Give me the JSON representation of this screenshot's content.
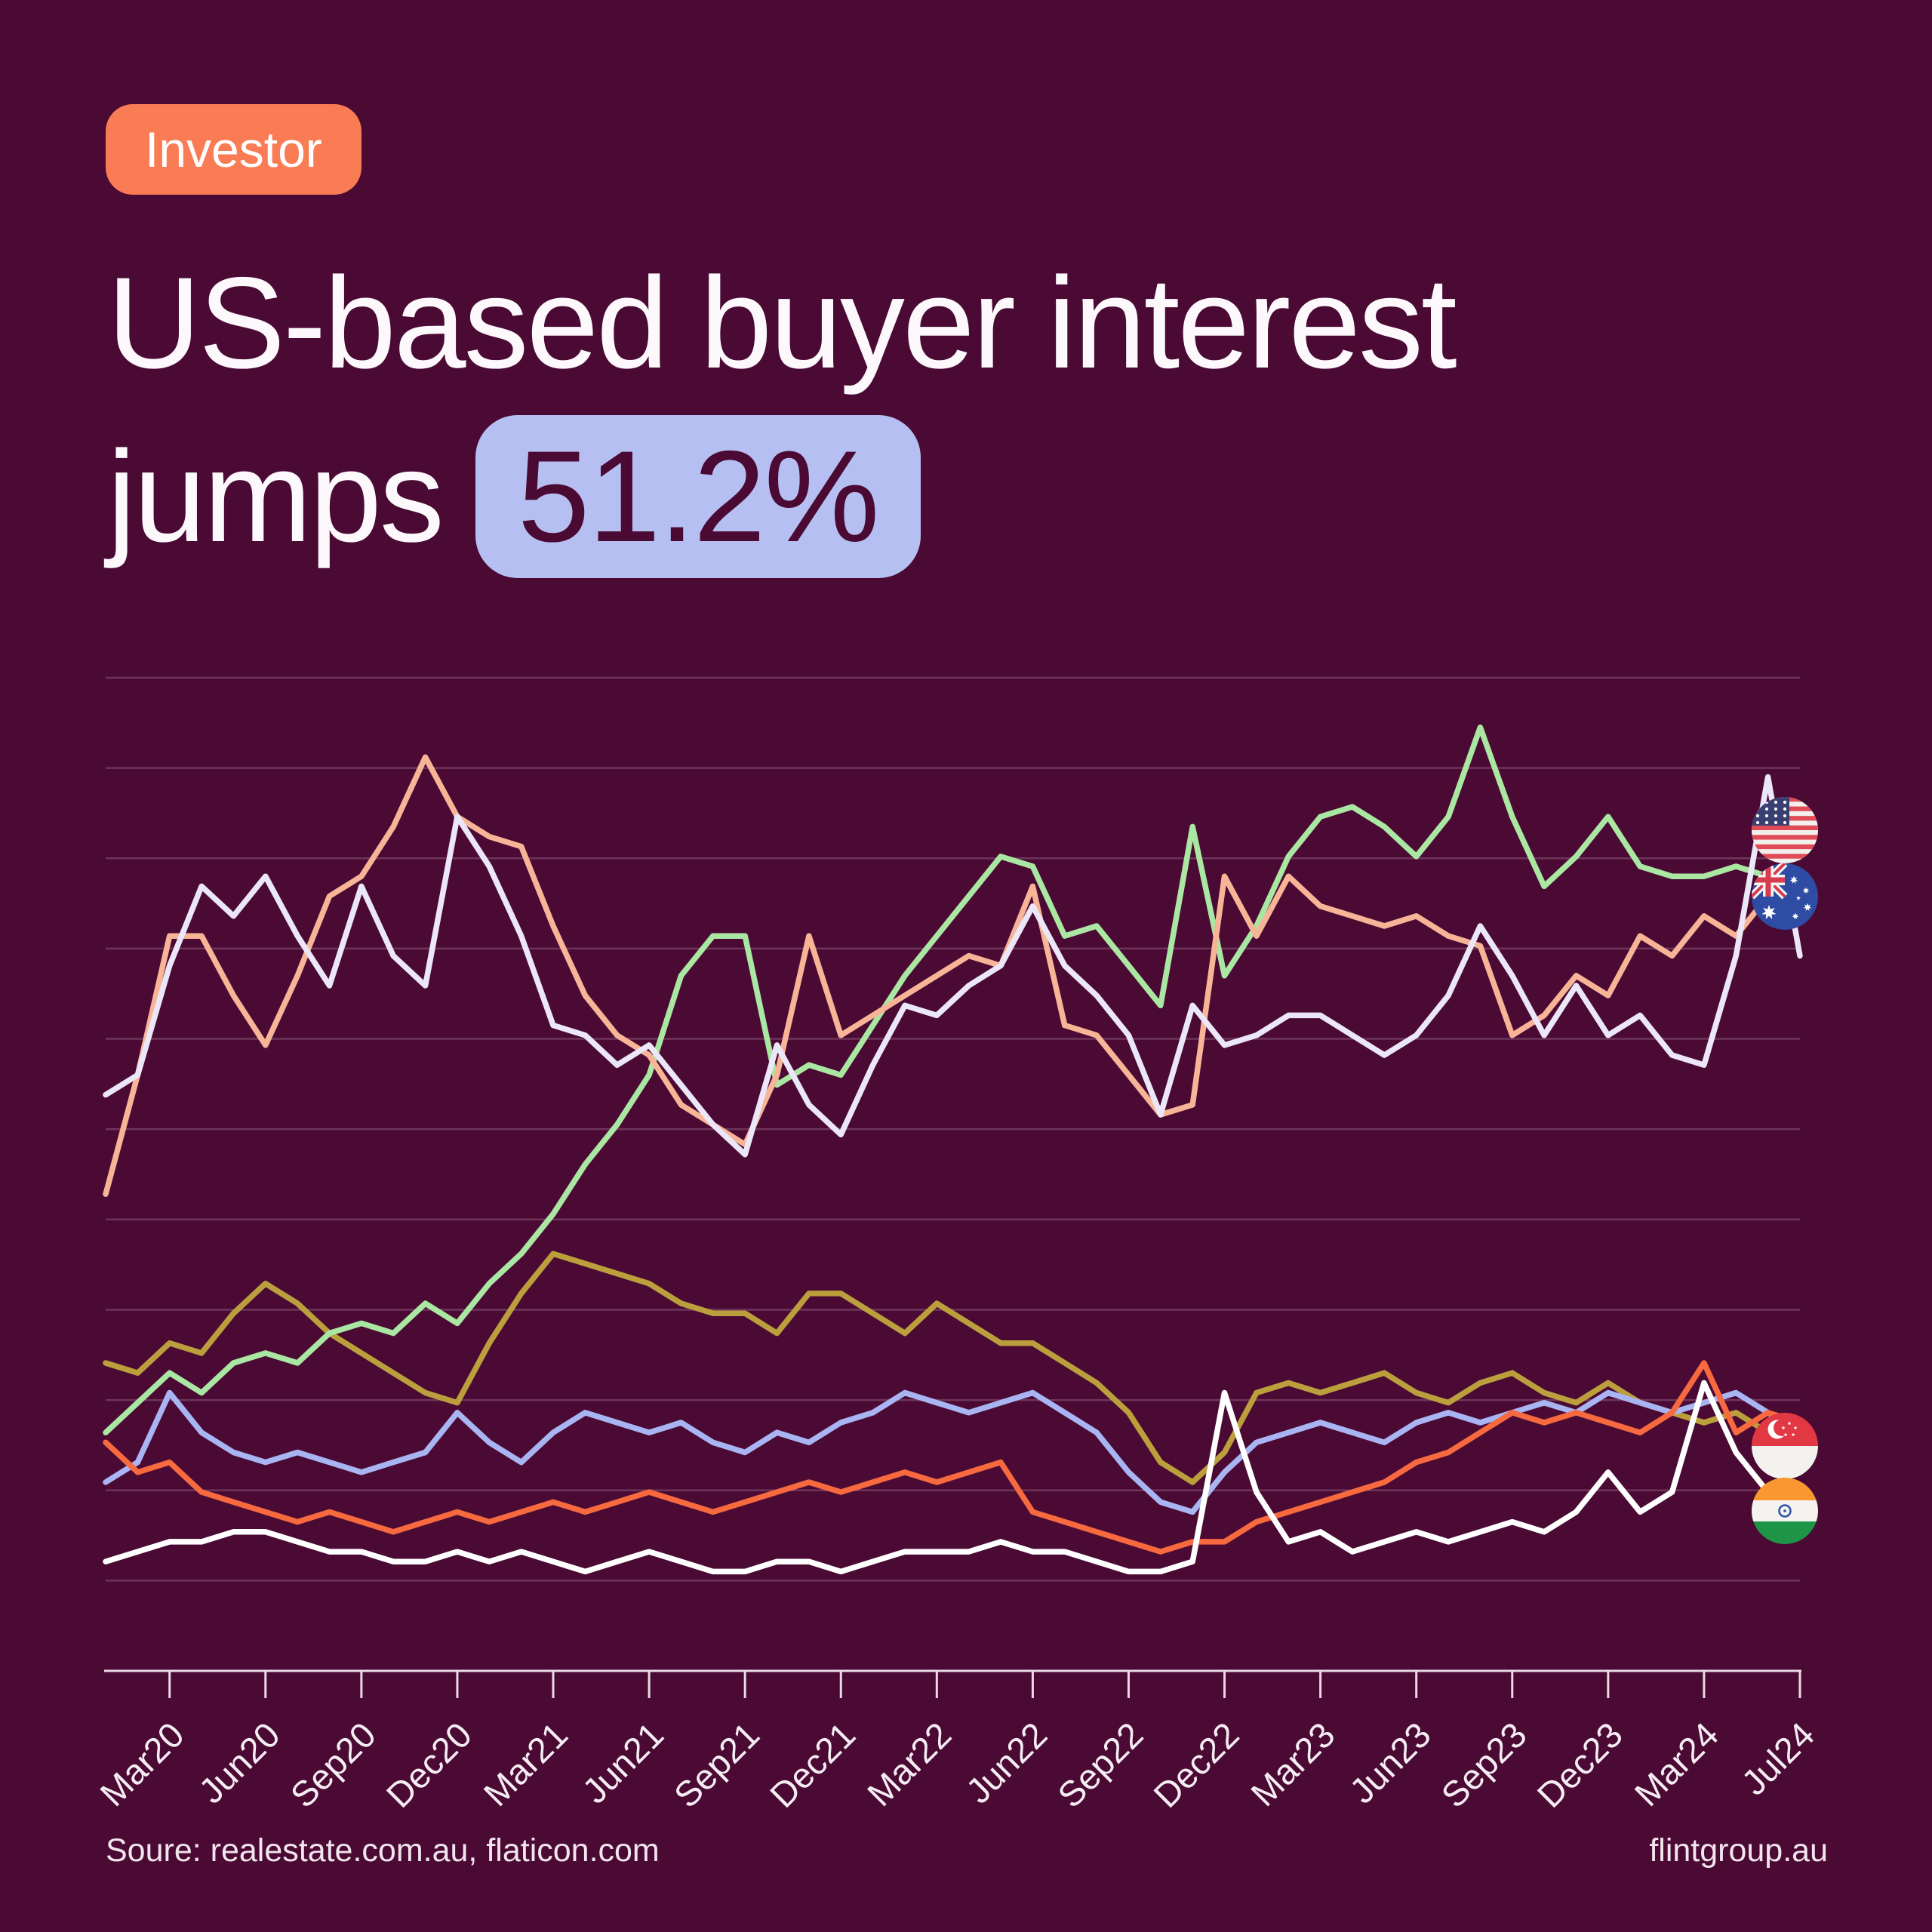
{
  "page": {
    "background": "#4A0A33",
    "accent_orange": "#F97C55",
    "accent_lavender": "#B6BFF1"
  },
  "badge": {
    "label": "Investor"
  },
  "title": {
    "line1": "US-based buyer interest",
    "line2_prefix": "jumps",
    "highlight": "51.2%"
  },
  "footer": {
    "source": "Soure: realestate.com.au, flaticon.com",
    "site": "flintgroup.au"
  },
  "chart_data": {
    "type": "line",
    "title": "",
    "xlabel": "",
    "ylabel": "",
    "ylim": [
      0,
      105
    ],
    "grid": "horizontal",
    "legend_position": "right-flags",
    "n_points": 54,
    "x_tick_labels": [
      "Mar20",
      "Jun20",
      "Sep20",
      "Dec20",
      "Mar21",
      "Jun21",
      "Sep21",
      "Dec21",
      "Mar22",
      "Jun22",
      "Sep22",
      "Dec22",
      "Mar23",
      "Jun23",
      "Sep23",
      "Dec23",
      "Mar24",
      "Jul24"
    ],
    "x_tick_indices": [
      2,
      5,
      8,
      11,
      14,
      17,
      20,
      23,
      26,
      29,
      32,
      35,
      38,
      41,
      44,
      47,
      50,
      53
    ],
    "series": [
      {
        "name": "series-khaki",
        "color": "#BC9F3D",
        "flag": null,
        "values": [
          31,
          30,
          33,
          32,
          36,
          39,
          37,
          34,
          32,
          30,
          28,
          27,
          33,
          38,
          42,
          41,
          40,
          39,
          37,
          36,
          36,
          34,
          38,
          38,
          36,
          34,
          37,
          35,
          33,
          33,
          31,
          29,
          26,
          21,
          19,
          22,
          28,
          29,
          28,
          29,
          30,
          28,
          27,
          29,
          30,
          28,
          27,
          29,
          27,
          26,
          25,
          26,
          24,
          22
        ]
      },
      {
        "name": "series-periwinkle",
        "color": "#A9B5F3",
        "flag": null,
        "values": [
          19,
          21,
          28,
          24,
          22,
          21,
          22,
          21,
          20,
          21,
          22,
          26,
          23,
          21,
          24,
          26,
          25,
          24,
          25,
          23,
          22,
          24,
          23,
          25,
          26,
          28,
          27,
          26,
          27,
          28,
          26,
          24,
          20,
          17,
          16,
          20,
          23,
          24,
          25,
          24,
          23,
          25,
          26,
          25,
          26,
          27,
          26,
          28,
          27,
          26,
          27,
          28,
          26,
          24
        ]
      },
      {
        "name": "singapore",
        "color": "#F7693F",
        "flag": "sg",
        "values": [
          23,
          20,
          21,
          18,
          17,
          16,
          15,
          16,
          15,
          14,
          15,
          16,
          15,
          16,
          17,
          16,
          17,
          18,
          17,
          16,
          17,
          18,
          19,
          18,
          19,
          20,
          19,
          20,
          21,
          16,
          15,
          14,
          13,
          12,
          13,
          13,
          15,
          16,
          17,
          18,
          19,
          21,
          22,
          24,
          26,
          25,
          26,
          25,
          24,
          26,
          31,
          24,
          26,
          25
        ]
      },
      {
        "name": "india",
        "color": "#FFFFFF",
        "flag": "in",
        "values": [
          11,
          12,
          13,
          13,
          14,
          14,
          13,
          12,
          12,
          11,
          11,
          12,
          11,
          12,
          11,
          10,
          11,
          12,
          11,
          10,
          10,
          11,
          11,
          10,
          11,
          12,
          12,
          12,
          13,
          12,
          12,
          11,
          10,
          10,
          11,
          28,
          18,
          13,
          14,
          12,
          13,
          14,
          13,
          14,
          15,
          14,
          16,
          20,
          16,
          18,
          29,
          22,
          18,
          16
        ]
      },
      {
        "name": "series-green",
        "color": "#A9E7A3",
        "flag": null,
        "values": [
          24,
          27,
          30,
          28,
          31,
          32,
          31,
          34,
          35,
          34,
          37,
          35,
          39,
          42,
          46,
          51,
          55,
          60,
          70,
          74,
          74,
          59,
          61,
          60,
          65,
          70,
          74,
          78,
          82,
          81,
          74,
          75,
          71,
          67,
          85,
          70,
          75,
          82,
          86,
          87,
          85,
          82,
          86,
          95,
          86,
          79,
          82,
          86,
          81,
          80,
          80,
          81,
          80,
          79
        ]
      },
      {
        "name": "australia",
        "color": "#F7B497",
        "flag": "au",
        "values": [
          48,
          60,
          74,
          74,
          68,
          63,
          70,
          78,
          80,
          85,
          92,
          86,
          84,
          83,
          75,
          68,
          64,
          62,
          57,
          55,
          53,
          60,
          74,
          64,
          66,
          68,
          70,
          72,
          71,
          79,
          65,
          64,
          60,
          56,
          57,
          80,
          74,
          80,
          77,
          76,
          75,
          76,
          74,
          73,
          64,
          66,
          70,
          68,
          74,
          72,
          76,
          74,
          78,
          79
        ]
      },
      {
        "name": "united-states",
        "color": "#EBE7F9",
        "flag": "us",
        "values": [
          58,
          60,
          71,
          79,
          76,
          80,
          74,
          69,
          79,
          72,
          69,
          86,
          81,
          74,
          65,
          64,
          61,
          63,
          59,
          55,
          52,
          63,
          57,
          54,
          61,
          67,
          66,
          69,
          71,
          77,
          71,
          68,
          64,
          56,
          67,
          63,
          64,
          66,
          66,
          64,
          62,
          64,
          68,
          75,
          70,
          64,
          69,
          64,
          66,
          62,
          61,
          72,
          90,
          72
        ]
      }
    ],
    "flags": [
      {
        "country": "united-states",
        "flag": "us",
        "cy": 1100
      },
      {
        "country": "australia",
        "flag": "au",
        "cy": 1188
      },
      {
        "country": "singapore",
        "flag": "sg",
        "cy": 1916
      },
      {
        "country": "india",
        "flag": "in",
        "cy": 2002
      }
    ]
  }
}
